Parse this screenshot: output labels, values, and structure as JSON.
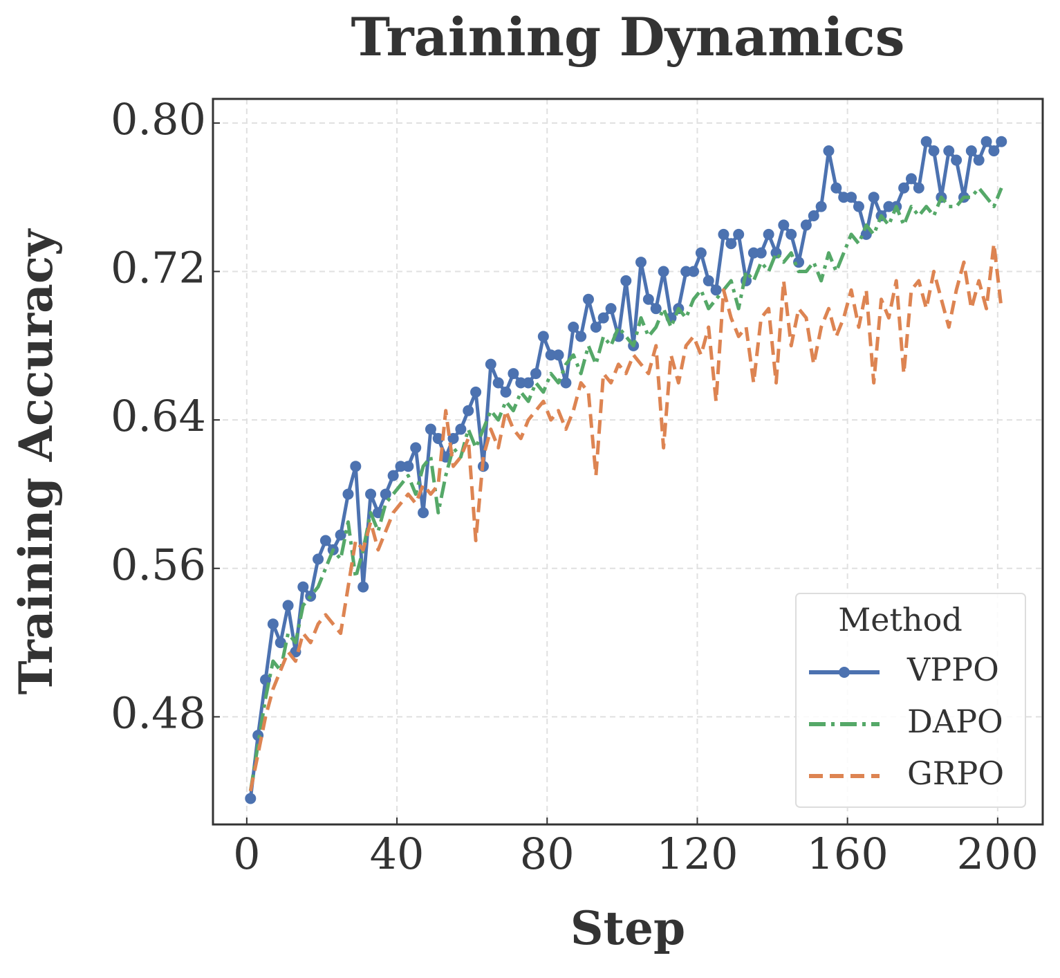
{
  "chart_data": {
    "type": "line",
    "title": "Training Dynamics",
    "x_label": "Step",
    "y_label": "Training Accuracy",
    "x": [
      1,
      3,
      5,
      7,
      9,
      11,
      13,
      15,
      17,
      19,
      21,
      23,
      25,
      27,
      29,
      31,
      33,
      35,
      37,
      39,
      41,
      43,
      45,
      47,
      49,
      51,
      53,
      55,
      57,
      59,
      61,
      63,
      65,
      67,
      69,
      71,
      73,
      75,
      77,
      79,
      81,
      83,
      85,
      87,
      89,
      91,
      93,
      95,
      97,
      99,
      101,
      103,
      105,
      107,
      109,
      111,
      113,
      115,
      117,
      119,
      121,
      123,
      125,
      127,
      129,
      131,
      133,
      135,
      137,
      139,
      141,
      143,
      145,
      147,
      149,
      151,
      153,
      155,
      157,
      159,
      161,
      163,
      165,
      167,
      169,
      171,
      173,
      175,
      177,
      179,
      181,
      183,
      185,
      187,
      189,
      191,
      193,
      195,
      197,
      199,
      201
    ],
    "series": [
      {
        "name": "VPPO",
        "color": "#4c72b0",
        "linestyle": "solid",
        "marker": "o",
        "values": [
          0.436,
          0.47,
          0.5,
          0.53,
          0.52,
          0.54,
          0.515,
          0.55,
          0.545,
          0.565,
          0.575,
          0.57,
          0.578,
          0.6,
          0.615,
          0.55,
          0.6,
          0.59,
          0.6,
          0.61,
          0.615,
          0.615,
          0.625,
          0.59,
          0.635,
          0.63,
          0.62,
          0.63,
          0.635,
          0.645,
          0.655,
          0.615,
          0.67,
          0.66,
          0.655,
          0.665,
          0.66,
          0.66,
          0.665,
          0.685,
          0.675,
          0.675,
          0.66,
          0.69,
          0.685,
          0.705,
          0.69,
          0.695,
          0.7,
          0.685,
          0.715,
          0.68,
          0.725,
          0.705,
          0.7,
          0.72,
          0.695,
          0.7,
          0.72,
          0.72,
          0.73,
          0.715,
          0.71,
          0.74,
          0.735,
          0.74,
          0.715,
          0.73,
          0.73,
          0.74,
          0.73,
          0.745,
          0.74,
          0.725,
          0.745,
          0.75,
          0.755,
          0.785,
          0.765,
          0.76,
          0.76,
          0.755,
          0.74,
          0.76,
          0.75,
          0.755,
          0.755,
          0.765,
          0.77,
          0.765,
          0.79,
          0.785,
          0.76,
          0.785,
          0.78,
          0.76,
          0.785,
          0.78,
          0.79,
          0.785,
          0.79
        ]
      },
      {
        "name": "DAPO",
        "color": "#55a868",
        "linestyle": "dashdot",
        "values": [
          0.44,
          0.465,
          0.49,
          0.51,
          0.505,
          0.525,
          0.52,
          0.54,
          0.545,
          0.55,
          0.56,
          0.57,
          0.565,
          0.585,
          0.555,
          0.57,
          0.59,
          0.58,
          0.595,
          0.6,
          0.605,
          0.61,
          0.6,
          0.615,
          0.62,
          0.59,
          0.61,
          0.625,
          0.62,
          0.635,
          0.625,
          0.635,
          0.645,
          0.64,
          0.65,
          0.645,
          0.655,
          0.65,
          0.66,
          0.655,
          0.665,
          0.66,
          0.67,
          0.675,
          0.665,
          0.68,
          0.67,
          0.685,
          0.68,
          0.69,
          0.685,
          0.68,
          0.695,
          0.685,
          0.69,
          0.7,
          0.69,
          0.7,
          0.695,
          0.705,
          0.71,
          0.7,
          0.705,
          0.71,
          0.715,
          0.7,
          0.72,
          0.715,
          0.725,
          0.72,
          0.73,
          0.725,
          0.73,
          0.72,
          0.72,
          0.725,
          0.715,
          0.73,
          0.72,
          0.73,
          0.74,
          0.735,
          0.745,
          0.74,
          0.75,
          0.745,
          0.755,
          0.745,
          0.755,
          0.75,
          0.755,
          0.75,
          0.76,
          0.755,
          0.755,
          0.76,
          0.76,
          0.765,
          0.76,
          0.755,
          0.765
        ]
      },
      {
        "name": "GRPO",
        "color": "#dd8452",
        "linestyle": "dashed",
        "values": [
          0.44,
          0.46,
          0.48,
          0.495,
          0.505,
          0.515,
          0.51,
          0.525,
          0.52,
          0.53,
          0.535,
          0.53,
          0.525,
          0.55,
          0.575,
          0.57,
          0.585,
          0.57,
          0.58,
          0.59,
          0.595,
          0.6,
          0.595,
          0.605,
          0.6,
          0.605,
          0.645,
          0.615,
          0.62,
          0.63,
          0.575,
          0.62,
          0.635,
          0.625,
          0.645,
          0.635,
          0.63,
          0.64,
          0.645,
          0.65,
          0.64,
          0.645,
          0.635,
          0.645,
          0.66,
          0.655,
          0.61,
          0.665,
          0.66,
          0.67,
          0.665,
          0.675,
          0.67,
          0.665,
          0.68,
          0.625,
          0.675,
          0.66,
          0.68,
          0.685,
          0.675,
          0.69,
          0.65,
          0.71,
          0.695,
          0.685,
          0.69,
          0.66,
          0.695,
          0.7,
          0.66,
          0.715,
          0.68,
          0.7,
          0.695,
          0.67,
          0.69,
          0.7,
          0.685,
          0.695,
          0.71,
          0.69,
          0.71,
          0.66,
          0.705,
          0.695,
          0.715,
          0.665,
          0.71,
          0.715,
          0.7,
          0.72,
          0.705,
          0.69,
          0.71,
          0.725,
          0.7,
          0.715,
          0.7,
          0.735,
          0.7
        ]
      }
    ],
    "xlim": [
      -9,
      212
    ],
    "ylim": [
      0.422,
      0.813
    ],
    "xticks": [
      0,
      40,
      80,
      120,
      160,
      200
    ],
    "yticks": [
      0.48,
      0.56,
      0.64,
      0.72,
      {
        "value": 0.8,
        "label": "0.80"
      }
    ],
    "grid": true,
    "legend_title": "Method",
    "legend_loc": "lower right"
  }
}
